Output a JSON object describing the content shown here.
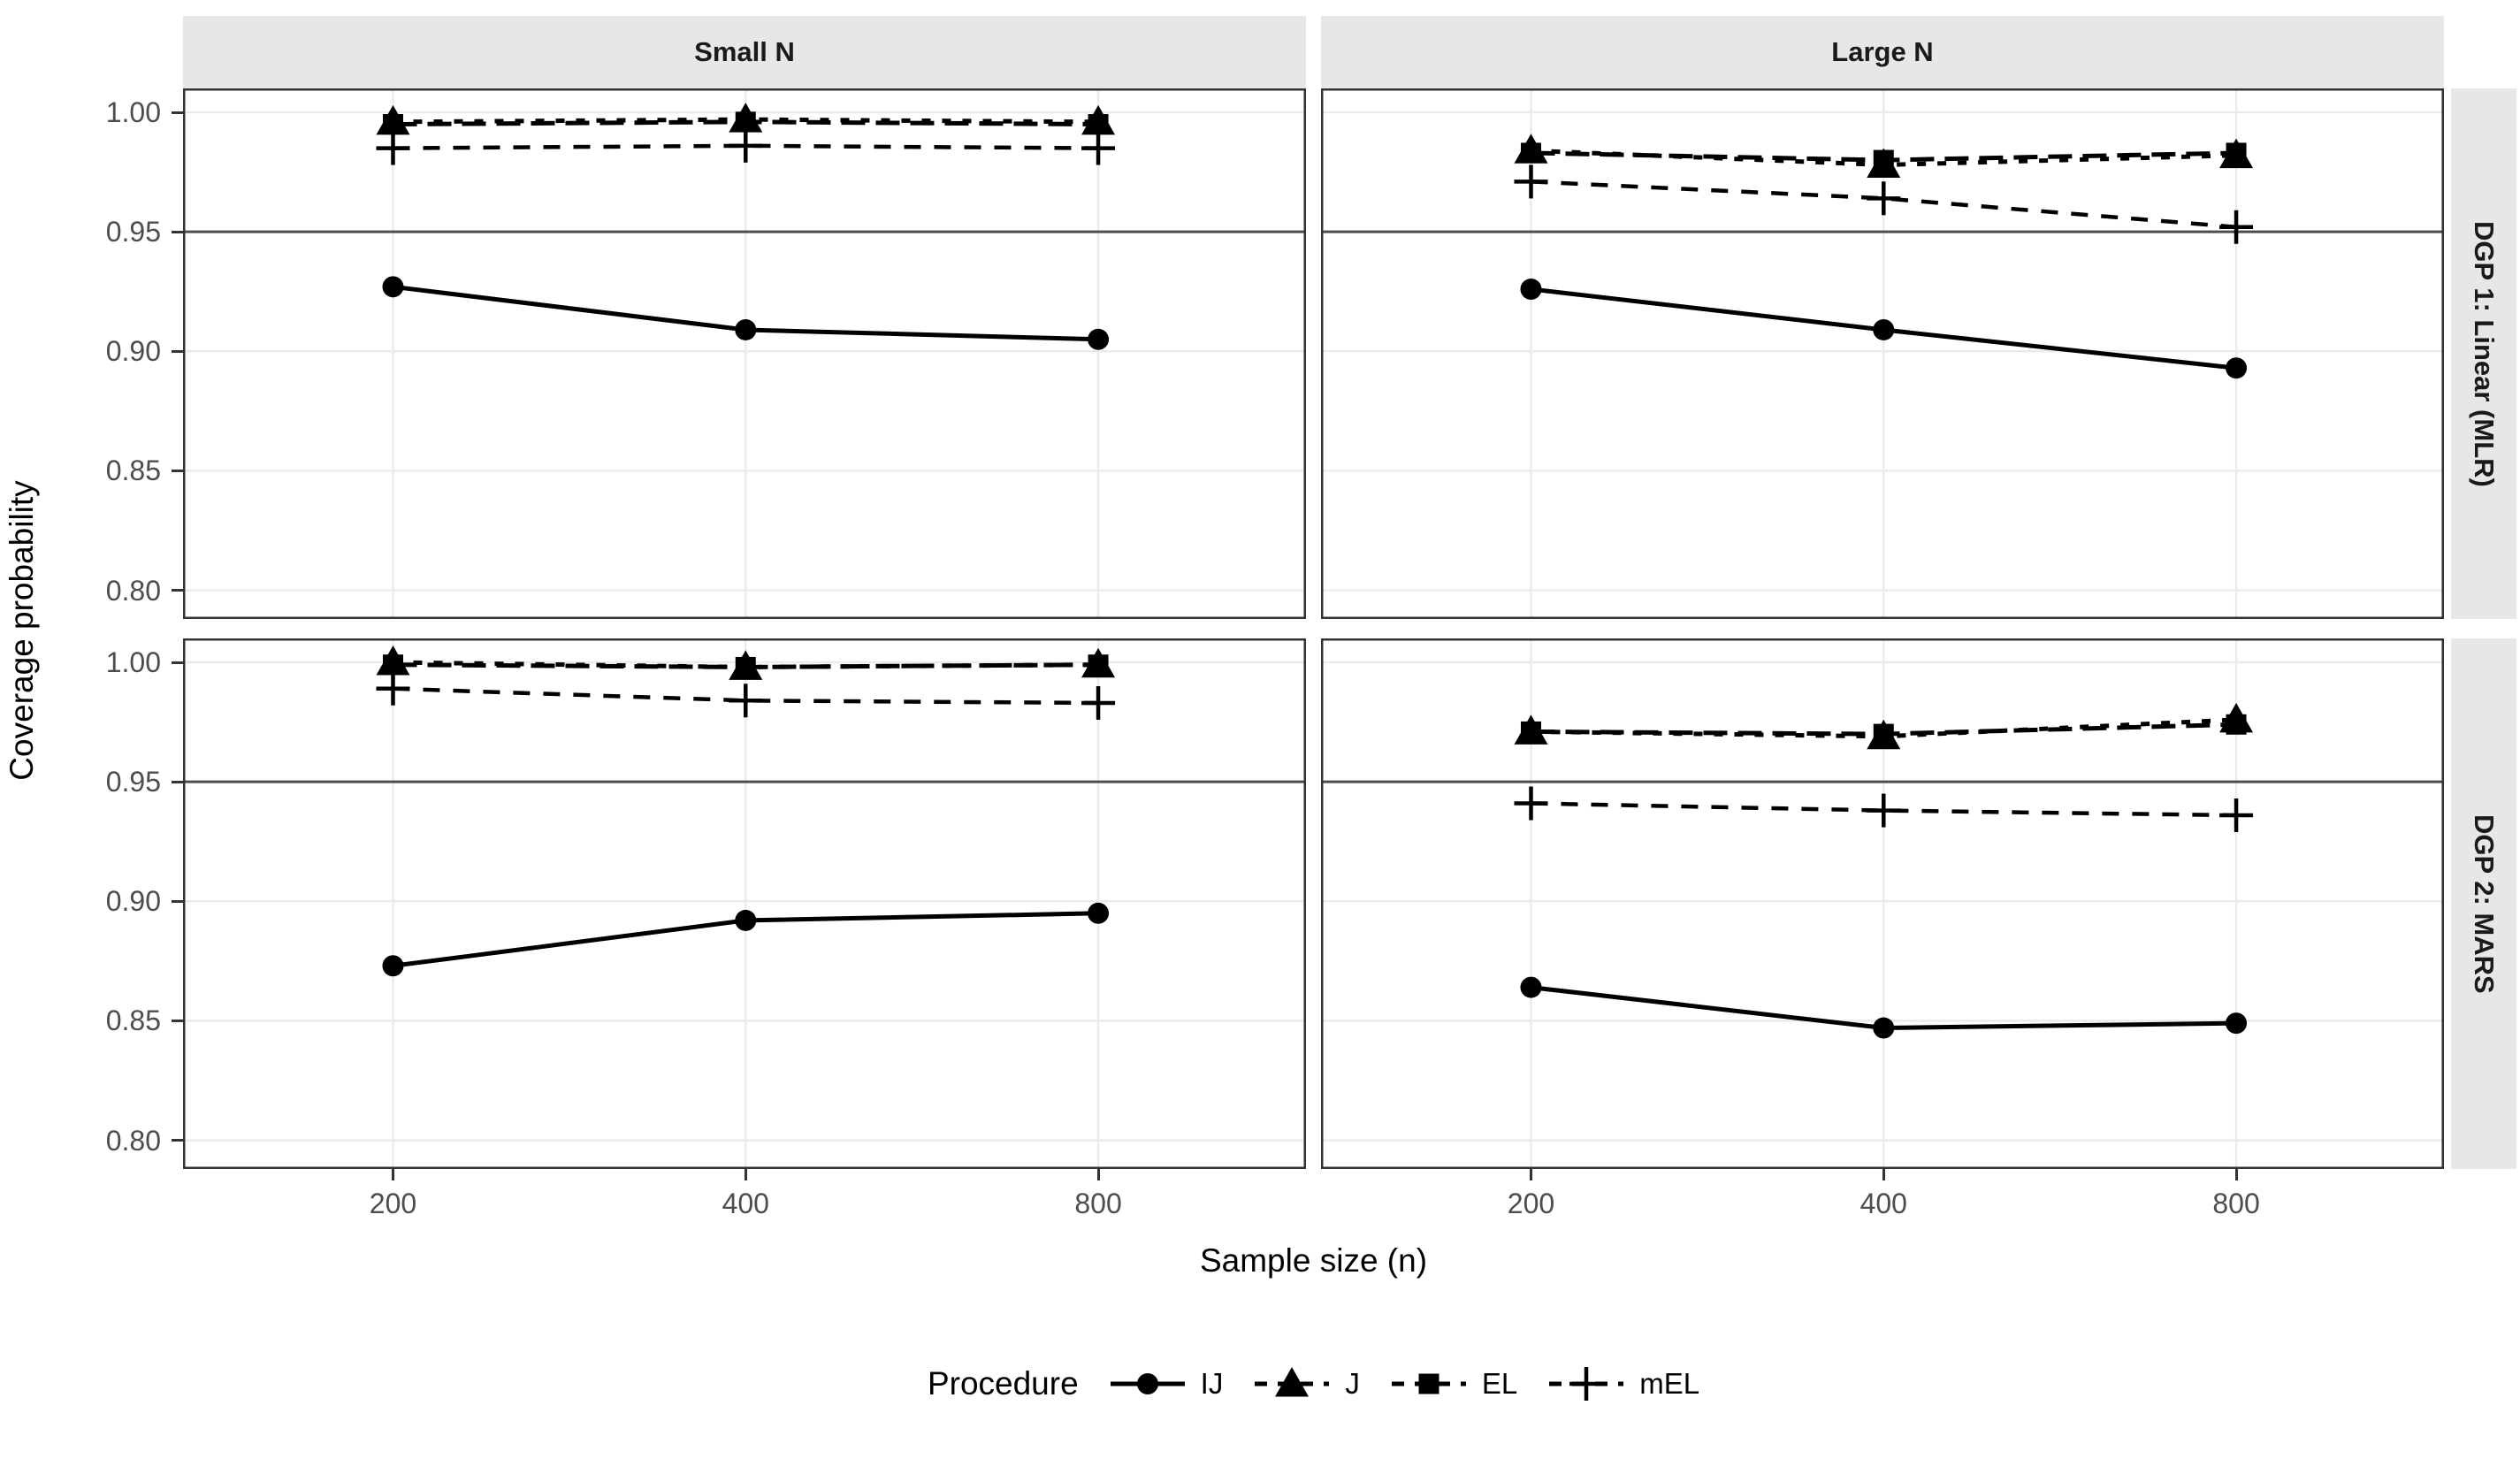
{
  "figure_title": "",
  "axes": {
    "y_title": "Coverage probability",
    "x_title": "Sample size (n)",
    "y_tick_labels": [
      "1.00",
      "0.95",
      "0.90",
      "0.85",
      "0.80"
    ],
    "x_tick_labels": [
      "200",
      "400",
      "800"
    ]
  },
  "legend": {
    "title": "Procedure",
    "items": [
      "IJ",
      "J",
      "EL",
      "mEL"
    ]
  },
  "chart_data": {
    "type": "line",
    "xlabel": "Sample size (n)",
    "ylabel": "Coverage probability",
    "x": [
      200,
      400,
      800
    ],
    "x_scale": "log2",
    "ylim": [
      0.788,
      1.01
    ],
    "y_ticks": [
      1.0,
      0.95,
      0.9,
      0.85,
      0.8
    ],
    "y_tick_labels": [
      "1.00",
      "0.95",
      "0.90",
      "0.85",
      "0.80"
    ],
    "x_tick_labels": [
      "200",
      "400",
      "800"
    ],
    "reference_line_y": 0.95,
    "grid": "major-only",
    "legend_title": "Procedure",
    "legend_position": "bottom",
    "facet_cols": [
      "Small N",
      "Large N"
    ],
    "facet_rows": [
      "DGP 1: Linear (MLR)",
      "DGP 2: MARS"
    ],
    "series_styles": [
      {
        "name": "IJ",
        "marker": "circle",
        "linetype": "solid"
      },
      {
        "name": "J",
        "marker": "triangle",
        "linetype": "dashed"
      },
      {
        "name": "EL",
        "marker": "square",
        "linetype": "longdash"
      },
      {
        "name": "mEL",
        "marker": "plus",
        "linetype": "dashed"
      }
    ],
    "panels": [
      {
        "facet_col": "Small N",
        "facet_row": "DGP 1: Linear (MLR)",
        "series": [
          {
            "name": "IJ",
            "values": [
              0.927,
              0.909,
              0.905
            ]
          },
          {
            "name": "J",
            "values": [
              0.996,
              0.997,
              0.996
            ]
          },
          {
            "name": "EL",
            "values": [
              0.995,
              0.996,
              0.995
            ]
          },
          {
            "name": "mEL",
            "values": [
              0.985,
              0.986,
              0.985
            ]
          }
        ]
      },
      {
        "facet_col": "Large N",
        "facet_row": "DGP 1: Linear (MLR)",
        "series": [
          {
            "name": "IJ",
            "values": [
              0.926,
              0.909,
              0.893
            ]
          },
          {
            "name": "J",
            "values": [
              0.984,
              0.978,
              0.982
            ]
          },
          {
            "name": "EL",
            "values": [
              0.983,
              0.98,
              0.983
            ]
          },
          {
            "name": "mEL",
            "values": [
              0.971,
              0.964,
              0.952
            ]
          }
        ]
      },
      {
        "facet_col": "Small N",
        "facet_row": "DGP 2: MARS",
        "series": [
          {
            "name": "IJ",
            "values": [
              0.873,
              0.892,
              0.895
            ]
          },
          {
            "name": "J",
            "values": [
              1.0,
              0.998,
              0.999
            ]
          },
          {
            "name": "EL",
            "values": [
              0.999,
              0.998,
              0.999
            ]
          },
          {
            "name": "mEL",
            "values": [
              0.989,
              0.984,
              0.983
            ]
          }
        ]
      },
      {
        "facet_col": "Large N",
        "facet_row": "DGP 2: MARS",
        "series": [
          {
            "name": "IJ",
            "values": [
              0.864,
              0.847,
              0.849
            ]
          },
          {
            "name": "J",
            "values": [
              0.971,
              0.969,
              0.976
            ]
          },
          {
            "name": "EL",
            "values": [
              0.971,
              0.97,
              0.974
            ]
          },
          {
            "name": "mEL",
            "values": [
              0.941,
              0.938,
              0.936
            ]
          }
        ]
      }
    ]
  },
  "colors": {
    "background": "#ffffff",
    "strip_fill": "#e7e7e7",
    "strip_text": "#1a1a1a",
    "panel_border": "#333333",
    "gridline": "#ebebeb",
    "reference_line": "#4d4d4d",
    "axis_text": "#4d4d4d",
    "series": "#000000"
  }
}
